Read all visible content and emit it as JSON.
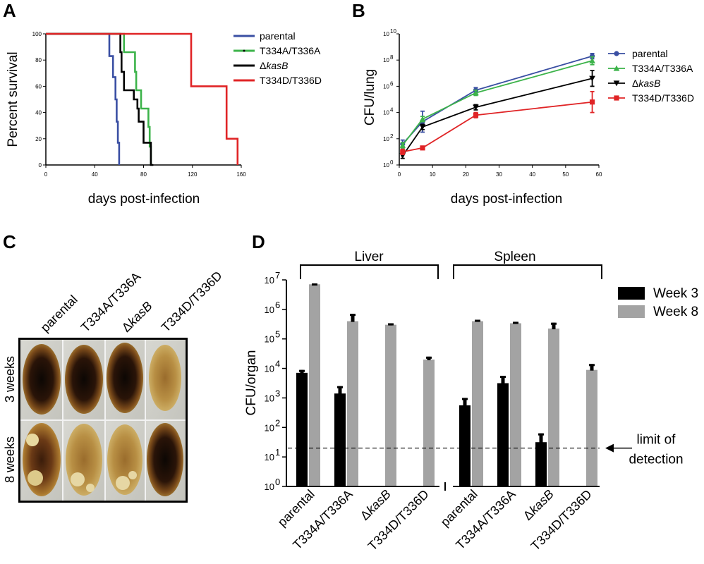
{
  "chart_data": [
    {
      "panel": "A",
      "type": "line",
      "xlabel": "days post-infection",
      "ylabel": "Percent survival",
      "xlim": [
        0,
        160
      ],
      "ylim": [
        0,
        100
      ],
      "x_ticks": [
        "0",
        "40",
        "80",
        "120",
        "160"
      ],
      "y_ticks": [
        "0",
        "20",
        "40",
        "60",
        "80",
        "100"
      ],
      "legend_position": "right",
      "series": [
        {
          "name": "parental",
          "color": "#3a4fa3",
          "steps": [
            [
              0,
              100
            ],
            [
              52,
              100
            ],
            [
              52,
              83
            ],
            [
              55,
              83
            ],
            [
              55,
              67
            ],
            [
              57,
              67
            ],
            [
              57,
              50
            ],
            [
              58,
              50
            ],
            [
              58,
              33
            ],
            [
              59,
              33
            ],
            [
              59,
              17
            ],
            [
              60,
              17
            ],
            [
              60,
              0
            ]
          ]
        },
        {
          "name": "T334A/T336A",
          "color": "#3cb34a",
          "steps": [
            [
              0,
              100
            ],
            [
              64,
              100
            ],
            [
              64,
              86
            ],
            [
              73,
              86
            ],
            [
              73,
              71
            ],
            [
              74,
              71
            ],
            [
              74,
              57
            ],
            [
              78,
              57
            ],
            [
              78,
              43
            ],
            [
              84,
              43
            ],
            [
              84,
              29
            ],
            [
              85,
              29
            ],
            [
              85,
              14
            ],
            [
              86,
              14
            ],
            [
              86,
              0
            ]
          ]
        },
        {
          "name": "ΔkasB",
          "color": "#000000",
          "steps": [
            [
              0,
              100
            ],
            [
              61,
              100
            ],
            [
              61,
              86
            ],
            [
              62,
              86
            ],
            [
              62,
              71
            ],
            [
              64,
              71
            ],
            [
              64,
              57
            ],
            [
              72,
              57
            ],
            [
              72,
              50
            ],
            [
              75,
              50
            ],
            [
              75,
              43
            ],
            [
              76,
              43
            ],
            [
              76,
              33
            ],
            [
              80,
              33
            ],
            [
              80,
              17
            ],
            [
              86,
              17
            ],
            [
              86,
              0
            ],
            [
              88,
              0
            ]
          ]
        },
        {
          "name": "T334D/T336D",
          "color": "#e02426",
          "steps": [
            [
              0,
              100
            ],
            [
              66,
              100
            ],
            [
              119,
              100
            ],
            [
              119,
              60
            ],
            [
              148,
              60
            ],
            [
              148,
              20
            ],
            [
              157,
              20
            ],
            [
              157,
              0
            ]
          ]
        }
      ]
    },
    {
      "panel": "B",
      "type": "line",
      "xlabel": "days post-infection",
      "ylabel": "CFU/lung",
      "xlim": [
        0,
        60
      ],
      "ylim_log10": [
        0,
        10
      ],
      "y_scale": "log",
      "x_ticks": [
        "0",
        "10",
        "20",
        "30",
        "40",
        "50",
        "60"
      ],
      "y_tick_bases": [
        "10",
        "10",
        "10",
        "10",
        "10",
        "10"
      ],
      "y_tick_exps": [
        "0",
        "2",
        "4",
        "6",
        "8",
        "10"
      ],
      "legend_position": "right",
      "series": [
        {
          "name": "parental",
          "color": "#3a4fa3",
          "marker": "circle",
          "points": [
            [
              1,
              1.6
            ],
            [
              7,
              3.3
            ],
            [
              23,
              5.7
            ],
            [
              58,
              8.3
            ]
          ],
          "err": [
            0.3,
            0.8,
            0.2,
            0.2
          ]
        },
        {
          "name": "T334A/T336A",
          "color": "#3cb34a",
          "marker": "triangle-up",
          "points": [
            [
              1,
              1.5
            ],
            [
              7,
              3.5
            ],
            [
              23,
              5.5
            ],
            [
              58,
              7.95
            ]
          ],
          "err": [
            0.2,
            0.2,
            0.2,
            0.3
          ]
        },
        {
          "name": "ΔkasB",
          "color": "#000000",
          "marker": "triangle-down",
          "points": [
            [
              1,
              0.7
            ],
            [
              7,
              2.9
            ],
            [
              23,
              4.4
            ],
            [
              58,
              6.6
            ]
          ],
          "err": [
            0.2,
            0.2,
            0.2,
            0.6
          ]
        },
        {
          "name": "T334D/T336D",
          "color": "#e02426",
          "marker": "square",
          "points": [
            [
              1,
              1.0
            ],
            [
              7,
              1.3
            ],
            [
              23,
              3.8
            ],
            [
              58,
              4.8
            ]
          ],
          "err": [
            0.2,
            0.1,
            0.2,
            0.8
          ]
        }
      ]
    },
    {
      "panel": "D",
      "type": "bar",
      "ylabel": "CFU/organ",
      "y_scale": "log",
      "ylim_log10": [
        0,
        7
      ],
      "y_tick_bases": [
        "10",
        "10",
        "10",
        "10",
        "10",
        "10",
        "10",
        "10"
      ],
      "y_tick_exps": [
        "0",
        "1",
        "2",
        "3",
        "4",
        "5",
        "6",
        "7"
      ],
      "groups": [
        "Liver",
        "Spleen"
      ],
      "categories": [
        "parental",
        "T334A/T336A",
        "ΔkasB",
        "T334D/T336D",
        "parental",
        "T334A/T336A",
        "ΔkasB",
        "T334D/T336D"
      ],
      "limit_of_detection_log10": 1.3,
      "limit_label": [
        "limit of",
        "detection"
      ],
      "series": [
        {
          "name": "Week 3",
          "color": "#000000",
          "values_log10": [
            3.85,
            3.15,
            null,
            null,
            2.75,
            3.5,
            1.5,
            null
          ],
          "err": [
            0.1,
            0.25,
            0,
            0,
            0.25,
            0.25,
            0.3,
            0
          ]
        },
        {
          "name": "Week 8",
          "color": "#a3a3a3",
          "values_log10": [
            6.85,
            5.6,
            5.48,
            4.3,
            5.6,
            5.53,
            5.35,
            3.95
          ],
          "err": [
            0.03,
            0.25,
            0.05,
            0.1,
            0.05,
            0.05,
            0.2,
            0.2
          ]
        }
      ]
    }
  ],
  "panels": {
    "A": "A",
    "B": "B",
    "C": "C",
    "D": "D"
  },
  "photo": {
    "column_labels": [
      "parental",
      "T334A/T336A",
      "ΔkasB",
      "T334D/T336D"
    ],
    "row_labels": [
      "3 weeks",
      "8 weeks"
    ]
  },
  "colors": {
    "parental": "#3a4fa3",
    "T334A/T336A": "#3cb34a",
    "kasB": "#000000",
    "T334D/T336D": "#e02426",
    "week3": "#000000",
    "week8": "#a3a3a3"
  }
}
